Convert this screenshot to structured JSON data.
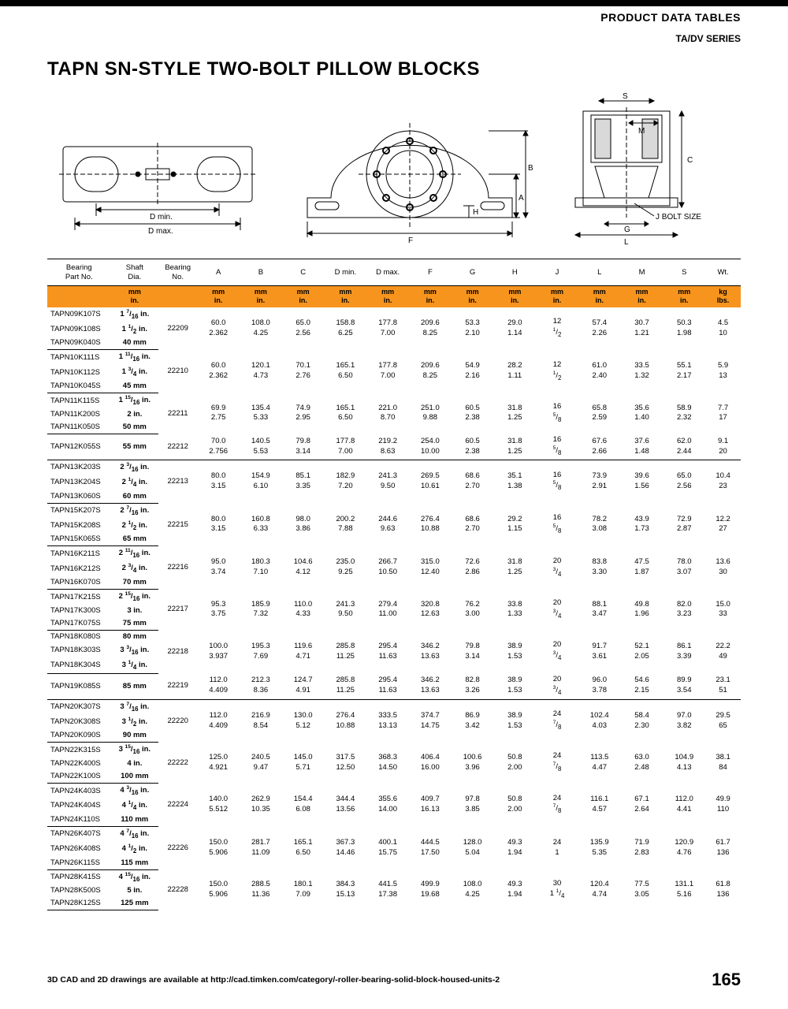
{
  "header": {
    "section": "PRODUCT DATA TABLES",
    "series": "TA/DV SERIES"
  },
  "title": "TAPN SN-STYLE TWO-BOLT PILLOW BLOCKS",
  "diagram_labels": {
    "dmin": "D min.",
    "dmax": "D max.",
    "F": "F",
    "H": "H",
    "A": "A",
    "B": "B",
    "S": "S",
    "M": "M",
    "C": "C",
    "G": "G",
    "L": "L",
    "jbolt": "J BOLT SIZE"
  },
  "columns": [
    "Bearing\nPart No.",
    "Shaft\nDia.",
    "Bearing\nNo.",
    "A",
    "B",
    "C",
    "D min.",
    "D max.",
    "F",
    "G",
    "H",
    "J",
    "L",
    "M",
    "S",
    "Wt."
  ],
  "units_mm": [
    "",
    "mm",
    "",
    "mm",
    "mm",
    "mm",
    "mm",
    "mm",
    "mm",
    "mm",
    "mm",
    "mm",
    "mm",
    "mm",
    "mm",
    "kg"
  ],
  "units_in": [
    "",
    "in.",
    "",
    "in.",
    "in.",
    "in.",
    "in.",
    "in.",
    "in.",
    "in.",
    "in.",
    "in.",
    "in.",
    "in.",
    "in.",
    "lbs."
  ],
  "groups": [
    {
      "parts": [
        "TAPN09K107S",
        "TAPN09K108S",
        "TAPN09K040S"
      ],
      "shafts": [
        "1 <sup>7</sup>/<sub>16</sub> in.",
        "1 <sup>1</sup>/<sub>2</sub> in.",
        "40 mm"
      ],
      "brg": "22209",
      "mm": [
        "60.0",
        "108.0",
        "65.0",
        "158.8",
        "177.8",
        "209.6",
        "53.3",
        "29.0",
        "12",
        "57.4",
        "30.7",
        "50.3",
        "4.5"
      ],
      "in": [
        "2.362",
        "4.25",
        "2.56",
        "6.25",
        "7.00",
        "8.25",
        "2.10",
        "1.14",
        "<sup>1</sup>/<sub>2</sub>",
        "2.26",
        "1.21",
        "1.98",
        "10"
      ]
    },
    {
      "parts": [
        "TAPN10K111S",
        "TAPN10K112S",
        "TAPN10K045S"
      ],
      "shafts": [
        "1 <sup>11</sup>/<sub>16</sub> in.",
        "1 <sup>3</sup>/<sub>4</sub> in.",
        "45 mm"
      ],
      "brg": "22210",
      "mm": [
        "60.0",
        "120.1",
        "70.1",
        "165.1",
        "177.8",
        "209.6",
        "54.9",
        "28.2",
        "12",
        "61.0",
        "33.5",
        "55.1",
        "5.9"
      ],
      "in": [
        "2.362",
        "4.73",
        "2.76",
        "6.50",
        "7.00",
        "8.25",
        "2.16",
        "1.11",
        "<sup>1</sup>/<sub>2</sub>",
        "2.40",
        "1.32",
        "2.17",
        "13"
      ]
    },
    {
      "parts": [
        "TAPN11K115S",
        "TAPN11K200S",
        "TAPN11K050S"
      ],
      "shafts": [
        "1 <sup>15</sup>/<sub>16</sub> in.",
        "2 in.",
        "50 mm"
      ],
      "brg": "22211",
      "mm": [
        "69.9",
        "135.4",
        "74.9",
        "165.1",
        "221.0",
        "251.0",
        "60.5",
        "31.8",
        "16",
        "65.8",
        "35.6",
        "58.9",
        "7.7"
      ],
      "in": [
        "2.75",
        "5.33",
        "2.95",
        "6.50",
        "8.70",
        "9.88",
        "2.38",
        "1.25",
        "<sup>5</sup>/<sub>8</sub>",
        "2.59",
        "1.40",
        "2.32",
        "17"
      ]
    },
    {
      "parts": [
        "TAPN12K055S"
      ],
      "shafts": [
        "55 mm"
      ],
      "brg": "22212",
      "mm": [
        "70.0",
        "140.5",
        "79.8",
        "177.8",
        "219.2",
        "254.0",
        "60.5",
        "31.8",
        "16",
        "67.6",
        "37.6",
        "62.0",
        "9.1"
      ],
      "in": [
        "2.756",
        "5.53",
        "3.14",
        "7.00",
        "8.63",
        "10.00",
        "2.38",
        "1.25",
        "<sup>5</sup>/<sub>8</sub>",
        "2.66",
        "1.48",
        "2.44",
        "20"
      ]
    },
    {
      "parts": [
        "TAPN13K203S",
        "TAPN13K204S",
        "TAPN13K060S"
      ],
      "shafts": [
        "2 <sup>3</sup>/<sub>16</sub> in.",
        "2 <sup>1</sup>/<sub>4</sub> in.",
        "60 mm"
      ],
      "brg": "22213",
      "mm": [
        "80.0",
        "154.9",
        "85.1",
        "182.9",
        "241.3",
        "269.5",
        "68.6",
        "35.1",
        "16",
        "73.9",
        "39.6",
        "65.0",
        "10.4"
      ],
      "in": [
        "3.15",
        "6.10",
        "3.35",
        "7.20",
        "9.50",
        "10.61",
        "2.70",
        "1.38",
        "<sup>5</sup>/<sub>8</sub>",
        "2.91",
        "1.56",
        "2.56",
        "23"
      ]
    },
    {
      "parts": [
        "TAPN15K207S",
        "TAPN15K208S",
        "TAPN15K065S"
      ],
      "shafts": [
        "2 <sup>7</sup>/<sub>16</sub> in.",
        "2 <sup>1</sup>/<sub>2</sub> in.",
        "65 mm"
      ],
      "brg": "22215",
      "mm": [
        "80.0",
        "160.8",
        "98.0",
        "200.2",
        "244.6",
        "276.4",
        "68.6",
        "29.2",
        "16",
        "78.2",
        "43.9",
        "72.9",
        "12.2"
      ],
      "in": [
        "3.15",
        "6.33",
        "3.86",
        "7.88",
        "9.63",
        "10.88",
        "2.70",
        "1.15",
        "<sup>5</sup>/<sub>8</sub>",
        "3.08",
        "1.73",
        "2.87",
        "27"
      ]
    },
    {
      "parts": [
        "TAPN16K211S",
        "TAPN16K212S",
        "TAPN16K070S"
      ],
      "shafts": [
        "2 <sup>11</sup>/<sub>16</sub> in.",
        "2 <sup>3</sup>/<sub>4</sub> in.",
        "70 mm"
      ],
      "brg": "22216",
      "mm": [
        "95.0",
        "180.3",
        "104.6",
        "235.0",
        "266.7",
        "315.0",
        "72.6",
        "31.8",
        "20",
        "83.8",
        "47.5",
        "78.0",
        "13.6"
      ],
      "in": [
        "3.74",
        "7.10",
        "4.12",
        "9.25",
        "10.50",
        "12.40",
        "2.86",
        "1.25",
        "<sup>3</sup>/<sub>4</sub>",
        "3.30",
        "1.87",
        "3.07",
        "30"
      ]
    },
    {
      "parts": [
        "TAPN17K215S",
        "TAPN17K300S",
        "TAPN17K075S"
      ],
      "shafts": [
        "2 <sup>15</sup>/<sub>16</sub> in.",
        "3 in.",
        "75 mm"
      ],
      "brg": "22217",
      "mm": [
        "95.3",
        "185.9",
        "110.0",
        "241.3",
        "279.4",
        "320.8",
        "76.2",
        "33.8",
        "20",
        "88.1",
        "49.8",
        "82.0",
        "15.0"
      ],
      "in": [
        "3.75",
        "7.32",
        "4.33",
        "9.50",
        "11.00",
        "12.63",
        "3.00",
        "1.33",
        "<sup>3</sup>/<sub>4</sub>",
        "3.47",
        "1.96",
        "3.23",
        "33"
      ]
    },
    {
      "parts": [
        "TAPN18K080S",
        "TAPN18K303S",
        "TAPN18K304S"
      ],
      "shafts": [
        "80 mm",
        "3 <sup>3</sup>/<sub>16</sub> in.",
        "3 <sup>1</sup>/<sub>4</sub> in."
      ],
      "brg": "22218",
      "mm": [
        "100.0",
        "195.3",
        "119.6",
        "285.8",
        "295.4",
        "346.2",
        "79.8",
        "38.9",
        "20",
        "91.7",
        "52.1",
        "86.1",
        "22.2"
      ],
      "in": [
        "3.937",
        "7.69",
        "4.71",
        "11.25",
        "11.63",
        "13.63",
        "3.14",
        "1.53",
        "<sup>3</sup>/<sub>4</sub>",
        "3.61",
        "2.05",
        "3.39",
        "49"
      ]
    },
    {
      "parts": [
        "TAPN19K085S"
      ],
      "shafts": [
        "85 mm"
      ],
      "brg": "22219",
      "mm": [
        "112.0",
        "212.3",
        "124.7",
        "285.8",
        "295.4",
        "346.2",
        "82.8",
        "38.9",
        "20",
        "96.0",
        "54.6",
        "89.9",
        "23.1"
      ],
      "in": [
        "4.409",
        "8.36",
        "4.91",
        "11.25",
        "11.63",
        "13.63",
        "3.26",
        "1.53",
        "<sup>3</sup>/<sub>4</sub>",
        "3.78",
        "2.15",
        "3.54",
        "51"
      ]
    },
    {
      "parts": [
        "TAPN20K307S",
        "TAPN20K308S",
        "TAPN20K090S"
      ],
      "shafts": [
        "3 <sup>7</sup>/<sub>16</sub> in.",
        "3 <sup>1</sup>/<sub>2</sub> in.",
        "90 mm"
      ],
      "brg": "22220",
      "mm": [
        "112.0",
        "216.9",
        "130.0",
        "276.4",
        "333.5",
        "374.7",
        "86.9",
        "38.9",
        "24",
        "102.4",
        "58.4",
        "97.0",
        "29.5"
      ],
      "in": [
        "4.409",
        "8.54",
        "5.12",
        "10.88",
        "13.13",
        "14.75",
        "3.42",
        "1.53",
        "<sup>7</sup>/<sub>8</sub>",
        "4.03",
        "2.30",
        "3.82",
        "65"
      ]
    },
    {
      "parts": [
        "TAPN22K315S",
        "TAPN22K400S",
        "TAPN22K100S"
      ],
      "shafts": [
        "3 <sup>15</sup>/<sub>16</sub> in.",
        "4 in.",
        "100 mm"
      ],
      "brg": "22222",
      "mm": [
        "125.0",
        "240.5",
        "145.0",
        "317.5",
        "368.3",
        "406.4",
        "100.6",
        "50.8",
        "24",
        "113.5",
        "63.0",
        "104.9",
        "38.1"
      ],
      "in": [
        "4.921",
        "9.47",
        "5.71",
        "12.50",
        "14.50",
        "16.00",
        "3.96",
        "2.00",
        "<sup>7</sup>/<sub>8</sub>",
        "4.47",
        "2.48",
        "4.13",
        "84"
      ]
    },
    {
      "parts": [
        "TAPN24K403S",
        "TAPN24K404S",
        "TAPN24K110S"
      ],
      "shafts": [
        "4 <sup>3</sup>/<sub>16</sub> in.",
        "4 <sup>1</sup>/<sub>4</sub> in.",
        "110 mm"
      ],
      "brg": "22224",
      "mm": [
        "140.0",
        "262.9",
        "154.4",
        "344.4",
        "355.6",
        "409.7",
        "97.8",
        "50.8",
        "24",
        "116.1",
        "67.1",
        "112.0",
        "49.9"
      ],
      "in": [
        "5.512",
        "10.35",
        "6.08",
        "13.56",
        "14.00",
        "16.13",
        "3.85",
        "2.00",
        "<sup>7</sup>/<sub>8</sub>",
        "4.57",
        "2.64",
        "4.41",
        "110"
      ]
    },
    {
      "parts": [
        "TAPN26K407S",
        "TAPN26K408S",
        "TAPN26K115S"
      ],
      "shafts": [
        "4 <sup>7</sup>/<sub>16</sub> in.",
        "4 <sup>1</sup>/<sub>2</sub> in.",
        "115 mm"
      ],
      "brg": "22226",
      "mm": [
        "150.0",
        "281.7",
        "165.1",
        "367.3",
        "400.1",
        "444.5",
        "128.0",
        "49.3",
        "24",
        "135.9",
        "71.9",
        "120.9",
        "61.7"
      ],
      "in": [
        "5.906",
        "11.09",
        "6.50",
        "14.46",
        "15.75",
        "17.50",
        "5.04",
        "1.94",
        "1",
        "5.35",
        "2.83",
        "4.76",
        "136"
      ]
    },
    {
      "parts": [
        "TAPN28K415S",
        "TAPN28K500S",
        "TAPN28K125S"
      ],
      "shafts": [
        "4 <sup>15</sup>/<sub>16</sub> in.",
        "5 in.",
        "125 mm"
      ],
      "brg": "22228",
      "mm": [
        "150.0",
        "288.5",
        "180.1",
        "384.3",
        "441.5",
        "499.9",
        "108.0",
        "49.3",
        "30",
        "120.4",
        "77.5",
        "131.1",
        "61.8"
      ],
      "in": [
        "5.906",
        "11.36",
        "7.09",
        "15.13",
        "17.38",
        "19.68",
        "4.25",
        "1.94",
        "1 <sup>1</sup>/<sub>4</sub>",
        "4.74",
        "3.05",
        "5.16",
        "136"
      ]
    }
  ],
  "footer": {
    "note": "3D CAD and 2D drawings are available at http://cad.timken.com/category/-roller-bearing-solid-block-housed-units-2",
    "page": "165"
  },
  "colors": {
    "accent": "#f7941d",
    "line": "#000000"
  }
}
